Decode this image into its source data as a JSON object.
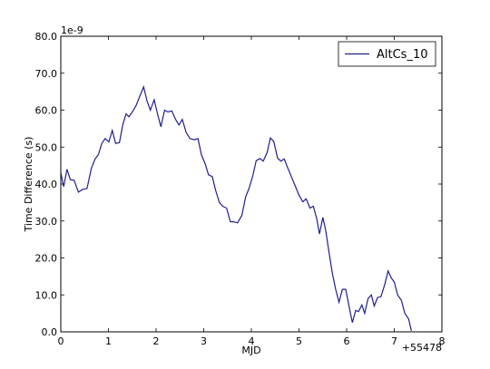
{
  "chart_data": {
    "type": "line",
    "xlabel": "MJD",
    "ylabel": "Time Difference (s)",
    "x_offset_label": "+55478",
    "y_scale_label": "1e-9",
    "xlim": [
      0,
      8
    ],
    "ylim": [
      0,
      80
    ],
    "x_ticks": [
      0,
      1,
      2,
      3,
      4,
      5,
      6,
      7,
      8
    ],
    "x_tick_labels": [
      "0",
      "1",
      "2",
      "3",
      "4",
      "5",
      "6",
      "7",
      "8"
    ],
    "y_ticks": [
      0,
      10,
      20,
      30,
      40,
      50,
      60,
      70,
      80
    ],
    "y_tick_labels": [
      "0.0",
      "10.0",
      "20.0",
      "30.0",
      "40.0",
      "50.0",
      "60.0",
      "70.0",
      "80.0"
    ],
    "grid": false,
    "legend_position": "top-right",
    "series": [
      {
        "name": "AltCs_10",
        "color": "#1f1f8f",
        "points": [
          [
            0.0,
            43.0
          ],
          [
            0.06,
            39.3
          ],
          [
            0.13,
            44.0
          ],
          [
            0.2,
            41.2
          ],
          [
            0.28,
            41.0
          ],
          [
            0.37,
            37.8
          ],
          [
            0.45,
            38.5
          ],
          [
            0.55,
            38.8
          ],
          [
            0.64,
            44.2
          ],
          [
            0.72,
            46.8
          ],
          [
            0.79,
            48.0
          ],
          [
            0.86,
            51.0
          ],
          [
            0.93,
            52.3
          ],
          [
            1.01,
            51.4
          ],
          [
            1.08,
            54.5
          ],
          [
            1.15,
            51.0
          ],
          [
            1.23,
            51.2
          ],
          [
            1.3,
            56.0
          ],
          [
            1.37,
            59.0
          ],
          [
            1.43,
            58.2
          ],
          [
            1.5,
            59.5
          ],
          [
            1.58,
            61.2
          ],
          [
            1.66,
            63.8
          ],
          [
            1.74,
            66.3
          ],
          [
            1.81,
            62.5
          ],
          [
            1.88,
            60.0
          ],
          [
            1.96,
            62.8
          ],
          [
            2.03,
            59.0
          ],
          [
            2.1,
            55.5
          ],
          [
            2.18,
            60.0
          ],
          [
            2.25,
            59.5
          ],
          [
            2.33,
            59.8
          ],
          [
            2.41,
            57.5
          ],
          [
            2.48,
            56.0
          ],
          [
            2.55,
            57.5
          ],
          [
            2.63,
            54.0
          ],
          [
            2.71,
            52.3
          ],
          [
            2.8,
            52.0
          ],
          [
            2.88,
            52.3
          ],
          [
            2.95,
            48.0
          ],
          [
            3.03,
            45.5
          ],
          [
            3.1,
            42.5
          ],
          [
            3.18,
            42.0
          ],
          [
            3.25,
            38.3
          ],
          [
            3.33,
            35.0
          ],
          [
            3.4,
            34.0
          ],
          [
            3.48,
            33.5
          ],
          [
            3.56,
            29.8
          ],
          [
            3.63,
            29.8
          ],
          [
            3.71,
            29.5
          ],
          [
            3.8,
            31.5
          ],
          [
            3.88,
            36.5
          ],
          [
            3.95,
            38.8
          ],
          [
            4.03,
            42.2
          ],
          [
            4.1,
            46.3
          ],
          [
            4.18,
            46.9
          ],
          [
            4.25,
            46.2
          ],
          [
            4.33,
            48.5
          ],
          [
            4.4,
            52.5
          ],
          [
            4.47,
            51.5
          ],
          [
            4.55,
            47.0
          ],
          [
            4.62,
            46.2
          ],
          [
            4.69,
            46.8
          ],
          [
            4.76,
            44.5
          ],
          [
            4.84,
            42.0
          ],
          [
            4.92,
            39.5
          ],
          [
            5.0,
            37.0
          ],
          [
            5.08,
            35.2
          ],
          [
            5.15,
            36.0
          ],
          [
            5.23,
            33.5
          ],
          [
            5.3,
            34.0
          ],
          [
            5.37,
            30.8
          ],
          [
            5.43,
            26.5
          ],
          [
            5.5,
            31.0
          ],
          [
            5.56,
            27.5
          ],
          [
            5.63,
            21.5
          ],
          [
            5.7,
            15.8
          ],
          [
            5.77,
            11.5
          ],
          [
            5.84,
            8.0
          ],
          [
            5.91,
            11.5
          ],
          [
            5.98,
            11.5
          ],
          [
            6.05,
            7.0
          ],
          [
            6.12,
            2.5
          ],
          [
            6.19,
            5.8
          ],
          [
            6.25,
            5.5
          ],
          [
            6.32,
            7.3
          ],
          [
            6.38,
            5.0
          ],
          [
            6.45,
            9.0
          ],
          [
            6.52,
            10.0
          ],
          [
            6.58,
            7.0
          ],
          [
            6.65,
            9.3
          ],
          [
            6.72,
            9.5
          ],
          [
            6.8,
            12.8
          ],
          [
            6.87,
            16.5
          ],
          [
            6.94,
            14.5
          ],
          [
            7.0,
            13.5
          ],
          [
            7.07,
            10.0
          ],
          [
            7.15,
            8.5
          ],
          [
            7.22,
            5.0
          ],
          [
            7.3,
            3.5
          ],
          [
            7.36,
            0.3
          ]
        ]
      }
    ]
  }
}
